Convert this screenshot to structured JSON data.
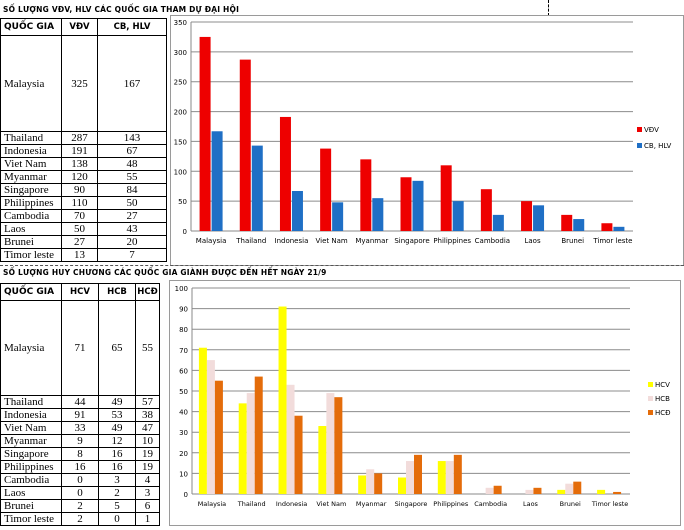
{
  "section1": {
    "title": "SỐ LƯỢNG VĐV, HLV CÁC QUỐC GIA THAM DỰ ĐẠI HỘI"
  },
  "section2": {
    "title": "SỐ LƯỢNG HUY CHƯƠNG CÁC QUỐC GIA GIÀNH ĐƯỢC ĐẾN HẾT NGÀY 21/9"
  },
  "table1": {
    "headers": [
      "QUỐC GIA",
      "VĐV",
      "CB, HLV"
    ],
    "rows": [
      [
        "Malaysia",
        "325",
        "167"
      ],
      [
        "Thailand",
        "287",
        "143"
      ],
      [
        "Indonesia",
        "191",
        "67"
      ],
      [
        "Viet Nam",
        "138",
        "48"
      ],
      [
        "Myanmar",
        "120",
        "55"
      ],
      [
        "Singapore",
        "90",
        "84"
      ],
      [
        "Philippines",
        "110",
        "50"
      ],
      [
        "Cambodia",
        "70",
        "27"
      ],
      [
        "Laos",
        "50",
        "43"
      ],
      [
        "Brunei",
        "27",
        "20"
      ],
      [
        "Timor leste",
        "13",
        "7"
      ]
    ]
  },
  "table2": {
    "headers": [
      "QUỐC GIA",
      "HCV",
      "HCB",
      "HCĐ"
    ],
    "rows": [
      [
        "Malaysia",
        "71",
        "65",
        "55"
      ],
      [
        "Thailand",
        "44",
        "49",
        "57"
      ],
      [
        "Indonesia",
        "91",
        "53",
        "38"
      ],
      [
        "Viet Nam",
        "33",
        "49",
        "47"
      ],
      [
        "Myanmar",
        "9",
        "12",
        "10"
      ],
      [
        "Singapore",
        "8",
        "16",
        "19"
      ],
      [
        "Philippines",
        "16",
        "16",
        "19"
      ],
      [
        "Cambodia",
        "0",
        "3",
        "4"
      ],
      [
        "Laos",
        "0",
        "2",
        "3"
      ],
      [
        "Brunei",
        "2",
        "5",
        "6"
      ],
      [
        "Timor leste",
        "2",
        "0",
        "1"
      ]
    ]
  },
  "chart_data": [
    {
      "type": "bar",
      "categories": [
        "Malaysia",
        "Thailand",
        "Indonesia",
        "Viet Nam",
        "Myanmar",
        "Singapore",
        "Philippines",
        "Cambodia",
        "Laos",
        "Brunei",
        "Timor leste"
      ],
      "series": [
        {
          "name": "VĐV",
          "values": [
            325,
            287,
            191,
            138,
            120,
            90,
            110,
            70,
            50,
            27,
            13
          ],
          "color": "#ee0000"
        },
        {
          "name": "CB, HLV",
          "values": [
            167,
            143,
            67,
            48,
            55,
            84,
            50,
            27,
            43,
            20,
            7
          ],
          "color": "#1f6fc5"
        }
      ],
      "ylim": [
        0,
        350
      ],
      "yticks": [
        0,
        50,
        100,
        150,
        200,
        250,
        300,
        350
      ],
      "grid": true,
      "legend": "right"
    },
    {
      "type": "bar",
      "categories": [
        "Malaysia",
        "Thailand",
        "Indonesia",
        "Viet Nam",
        "Myanmar",
        "Singapore",
        "Philippines",
        "Cambodia",
        "Laos",
        "Brunei",
        "Timor leste"
      ],
      "series": [
        {
          "name": "HCV",
          "values": [
            71,
            44,
            91,
            33,
            9,
            8,
            16,
            0,
            0,
            2,
            2
          ],
          "color": "#ffff00"
        },
        {
          "name": "HCB",
          "values": [
            65,
            49,
            53,
            49,
            12,
            16,
            16,
            3,
            2,
            5,
            0
          ],
          "color": "#f2dcdb"
        },
        {
          "name": "HCĐ",
          "values": [
            55,
            57,
            38,
            47,
            10,
            19,
            19,
            4,
            3,
            6,
            1
          ],
          "color": "#e46c0a"
        }
      ],
      "ylim": [
        0,
        100
      ],
      "yticks": [
        0,
        10,
        20,
        30,
        40,
        50,
        60,
        70,
        80,
        90,
        100
      ],
      "grid": true,
      "legend": "right"
    }
  ]
}
